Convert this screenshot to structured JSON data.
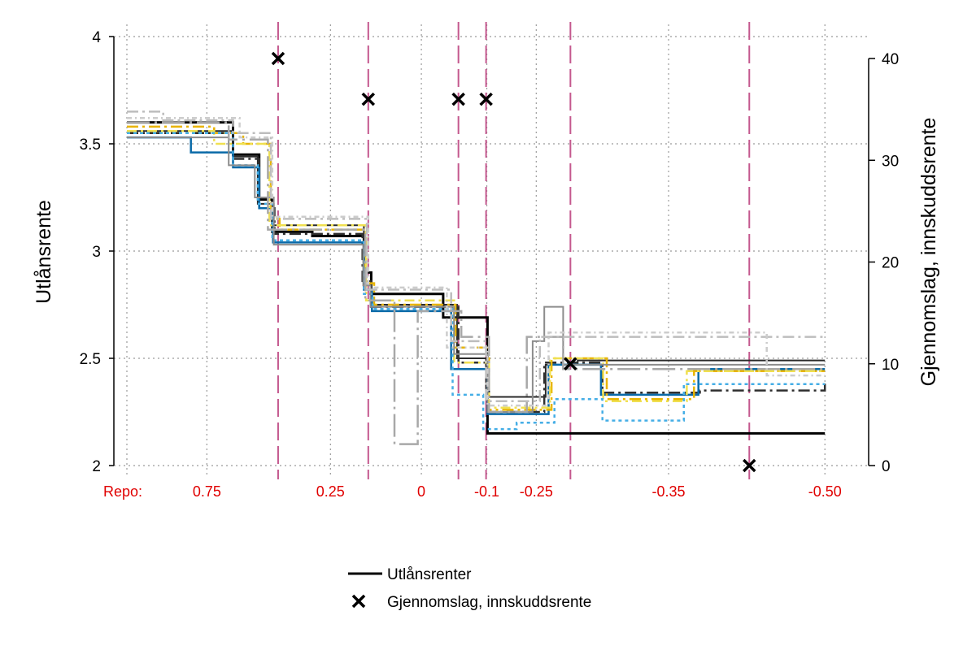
{
  "chart_data": {
    "type": "line",
    "ylabel_left": "Utlånsrente",
    "ylabel_right": "Gjennomslag, innskuddsrente",
    "ylim_left": [
      2,
      4
    ],
    "ylim_right": [
      0,
      40
    ],
    "yticks_left": [
      "2",
      "2.5",
      "3",
      "3.5",
      "4"
    ],
    "yticks_right": [
      "0",
      "10",
      "20",
      "30",
      "40"
    ],
    "grid": true,
    "x_domain": [
      0,
      100
    ],
    "repo_label": "Repo:",
    "repo_ticks": [
      {
        "label": "0.75",
        "x": 11
      },
      {
        "label": "0.25",
        "x": 28
      },
      {
        "label": "0",
        "x": 40.5
      },
      {
        "label": "-0.1",
        "x": 49.5
      },
      {
        "label": "-0.25",
        "x": 56.3
      },
      {
        "label": "-0.35",
        "x": 74.5
      },
      {
        "label": "-0.50",
        "x": 96
      }
    ],
    "rate_change_lines_x": [
      20.8,
      33.2,
      45.6,
      49.4,
      61.0,
      85.6
    ],
    "gjennomslag_points": [
      {
        "x": 20.8,
        "y": 40
      },
      {
        "x": 33.2,
        "y": 36
      },
      {
        "x": 45.6,
        "y": 36
      },
      {
        "x": 49.4,
        "y": 36
      },
      {
        "x": 61.0,
        "y": 10
      },
      {
        "x": 85.6,
        "y": 0
      }
    ],
    "series": [
      {
        "name": "Utlånsrenter",
        "color": "#000000",
        "dash": "",
        "width": 3,
        "points": [
          [
            0,
            3.6
          ],
          [
            14.6,
            3.6
          ],
          [
            14.6,
            3.45
          ],
          [
            18.2,
            3.45
          ],
          [
            18.2,
            3.24
          ],
          [
            20.0,
            3.24
          ],
          [
            20.0,
            3.09
          ],
          [
            25.5,
            3.09
          ],
          [
            25.5,
            3.07
          ],
          [
            32.6,
            3.07
          ],
          [
            32.6,
            2.9
          ],
          [
            33.6,
            2.9
          ],
          [
            33.6,
            2.8
          ],
          [
            43.5,
            2.8
          ],
          [
            43.5,
            2.69
          ],
          [
            49.6,
            2.69
          ],
          [
            49.6,
            2.15
          ],
          [
            96,
            2.15
          ]
        ]
      },
      {
        "color": "#2a2a2a",
        "dash": "",
        "width": 2,
        "points": [
          [
            0,
            3.56
          ],
          [
            14.6,
            3.56
          ],
          [
            14.6,
            3.44
          ],
          [
            18.0,
            3.44
          ],
          [
            18.0,
            3.22
          ],
          [
            20.2,
            3.22
          ],
          [
            20.2,
            3.12
          ],
          [
            32.6,
            3.12
          ],
          [
            32.6,
            2.86
          ],
          [
            33.6,
            2.86
          ],
          [
            33.6,
            2.75
          ],
          [
            45.4,
            2.75
          ],
          [
            45.4,
            2.5
          ],
          [
            49.4,
            2.5
          ],
          [
            49.4,
            2.32
          ],
          [
            57.6,
            2.32
          ],
          [
            57.6,
            2.47
          ],
          [
            62.0,
            2.47
          ],
          [
            62.0,
            2.49
          ],
          [
            96,
            2.49
          ]
        ]
      },
      {
        "color": "#2f2f2f",
        "dash": "14 5 3 5",
        "width": 2.5,
        "points": [
          [
            0,
            3.55
          ],
          [
            14.6,
            3.55
          ],
          [
            14.6,
            3.43
          ],
          [
            18.2,
            3.43
          ],
          [
            18.2,
            3.2
          ],
          [
            20.3,
            3.2
          ],
          [
            20.3,
            3.08
          ],
          [
            32.4,
            3.08
          ],
          [
            32.4,
            2.84
          ],
          [
            33.6,
            2.84
          ],
          [
            33.6,
            2.74
          ],
          [
            45.6,
            2.74
          ],
          [
            45.6,
            2.48
          ],
          [
            49.8,
            2.48
          ],
          [
            49.8,
            2.25
          ],
          [
            57.4,
            2.25
          ],
          [
            57.4,
            2.48
          ],
          [
            65.4,
            2.48
          ],
          [
            65.4,
            2.34
          ],
          [
            78.8,
            2.34
          ],
          [
            78.8,
            2.35
          ],
          [
            96,
            2.35
          ],
          [
            96,
            2.4
          ]
        ]
      },
      {
        "color": "#0a6aa8",
        "dash": "",
        "width": 2.5,
        "points": [
          [
            0,
            3.53
          ],
          [
            8.8,
            3.53
          ],
          [
            8.8,
            3.46
          ],
          [
            14.6,
            3.46
          ],
          [
            14.6,
            3.39
          ],
          [
            18.2,
            3.39
          ],
          [
            18.2,
            3.2
          ],
          [
            20.1,
            3.2
          ],
          [
            20.1,
            3.04
          ],
          [
            32.6,
            3.04
          ],
          [
            32.6,
            2.82
          ],
          [
            33.7,
            2.82
          ],
          [
            33.7,
            2.72
          ],
          [
            44.6,
            2.72
          ],
          [
            44.6,
            2.45
          ],
          [
            49.6,
            2.45
          ],
          [
            49.6,
            2.24
          ],
          [
            58.0,
            2.24
          ],
          [
            58.0,
            2.47
          ],
          [
            65.2,
            2.47
          ],
          [
            65.2,
            2.33
          ],
          [
            78.6,
            2.33
          ],
          [
            78.6,
            2.45
          ],
          [
            96,
            2.45
          ]
        ]
      },
      {
        "color": "#e8b400",
        "dash": "14 5 3 5",
        "width": 2.5,
        "points": [
          [
            0,
            3.58
          ],
          [
            12.0,
            3.58
          ],
          [
            12.0,
            3.55
          ],
          [
            16.0,
            3.55
          ],
          [
            16.0,
            3.5
          ],
          [
            19.8,
            3.5
          ],
          [
            19.8,
            3.15
          ],
          [
            21.0,
            3.15
          ],
          [
            21.0,
            3.1
          ],
          [
            32.8,
            3.1
          ],
          [
            32.8,
            2.85
          ],
          [
            34.0,
            2.85
          ],
          [
            34.0,
            2.75
          ],
          [
            45.2,
            2.75
          ],
          [
            45.2,
            2.55
          ],
          [
            49.8,
            2.55
          ],
          [
            49.8,
            2.26
          ],
          [
            58.4,
            2.26
          ],
          [
            58.4,
            2.5
          ],
          [
            66.0,
            2.5
          ],
          [
            66.0,
            2.31
          ],
          [
            78.0,
            2.31
          ],
          [
            78.0,
            2.44
          ],
          [
            96,
            2.44
          ]
        ]
      },
      {
        "color": "#f0e050",
        "dash": "12 5 3 5",
        "width": 2.5,
        "points": [
          [
            0,
            3.56
          ],
          [
            12.0,
            3.56
          ],
          [
            12.0,
            3.5
          ],
          [
            19.6,
            3.5
          ],
          [
            19.6,
            3.12
          ],
          [
            32.9,
            3.12
          ],
          [
            32.9,
            2.77
          ],
          [
            45.0,
            2.77
          ],
          [
            45.0,
            2.48
          ],
          [
            49.8,
            2.48
          ],
          [
            49.8,
            2.27
          ],
          [
            58.2,
            2.27
          ],
          [
            58.2,
            2.5
          ],
          [
            65.5,
            2.5
          ],
          [
            65.5,
            2.3
          ],
          [
            77.0,
            2.3
          ],
          [
            77.0,
            2.44
          ],
          [
            96,
            2.44
          ]
        ]
      },
      {
        "color": "#45aee6",
        "dash": "4 4",
        "width": 2.5,
        "points": [
          [
            0,
            3.55
          ],
          [
            14.6,
            3.55
          ],
          [
            14.6,
            3.4
          ],
          [
            18.0,
            3.4
          ],
          [
            18.0,
            3.22
          ],
          [
            20.0,
            3.22
          ],
          [
            20.0,
            3.05
          ],
          [
            32.6,
            3.05
          ],
          [
            32.6,
            2.8
          ],
          [
            33.8,
            2.8
          ],
          [
            33.8,
            2.73
          ],
          [
            44.8,
            2.73
          ],
          [
            44.8,
            2.33
          ],
          [
            49.0,
            2.33
          ],
          [
            49.0,
            2.17
          ],
          [
            53.6,
            2.17
          ],
          [
            53.6,
            2.2
          ],
          [
            58.8,
            2.2
          ],
          [
            58.8,
            2.31
          ],
          [
            65.4,
            2.31
          ],
          [
            65.4,
            2.21
          ],
          [
            76.6,
            2.21
          ],
          [
            76.6,
            2.38
          ],
          [
            96,
            2.38
          ]
        ]
      },
      {
        "color": "#8c8c8c",
        "dash": "",
        "width": 2,
        "points": [
          [
            0,
            3.53
          ],
          [
            14.0,
            3.53
          ],
          [
            14.0,
            3.4
          ],
          [
            17.6,
            3.4
          ],
          [
            17.6,
            3.25
          ],
          [
            20.2,
            3.25
          ],
          [
            20.2,
            3.03
          ],
          [
            32.5,
            3.03
          ],
          [
            32.5,
            2.84
          ],
          [
            33.5,
            2.84
          ],
          [
            33.5,
            2.74
          ],
          [
            45.0,
            2.74
          ],
          [
            45.0,
            2.52
          ],
          [
            49.6,
            2.52
          ],
          [
            49.6,
            2.25
          ],
          [
            55.8,
            2.25
          ],
          [
            55.8,
            2.58
          ],
          [
            57.4,
            2.58
          ],
          [
            57.4,
            2.74
          ],
          [
            60.0,
            2.74
          ],
          [
            60.0,
            2.47
          ],
          [
            96,
            2.47
          ]
        ]
      },
      {
        "color": "#a8a8a8",
        "dash": "28 6 3 6",
        "width": 2.5,
        "points": [
          [
            0,
            3.6
          ],
          [
            14.0,
            3.6
          ],
          [
            14.0,
            3.52
          ],
          [
            19.4,
            3.52
          ],
          [
            19.4,
            3.1
          ],
          [
            32.8,
            3.1
          ],
          [
            32.8,
            2.77
          ],
          [
            36.8,
            2.77
          ],
          [
            36.8,
            2.1
          ],
          [
            40.0,
            2.1
          ],
          [
            40.0,
            2.72
          ],
          [
            46.0,
            2.72
          ],
          [
            46.0,
            2.6
          ],
          [
            49.8,
            2.6
          ],
          [
            49.8,
            2.25
          ],
          [
            55.0,
            2.25
          ],
          [
            55.0,
            2.6
          ],
          [
            60.0,
            2.6
          ],
          [
            60.0,
            2.45
          ],
          [
            83.0,
            2.45
          ],
          [
            83.0,
            2.45
          ],
          [
            96,
            2.45
          ]
        ]
      },
      {
        "color": "#bdbdbd",
        "dash": "14 5 3 5",
        "width": 2.5,
        "points": [
          [
            0,
            3.65
          ],
          [
            5.0,
            3.65
          ],
          [
            5.0,
            3.61
          ],
          [
            14.6,
            3.61
          ],
          [
            14.6,
            3.55
          ],
          [
            19.8,
            3.55
          ],
          [
            19.8,
            3.15
          ],
          [
            33.0,
            3.15
          ],
          [
            33.0,
            2.82
          ],
          [
            44.6,
            2.82
          ],
          [
            44.6,
            2.58
          ],
          [
            49.4,
            2.58
          ],
          [
            49.4,
            2.3
          ],
          [
            56.8,
            2.3
          ],
          [
            56.8,
            2.6
          ],
          [
            74.0,
            2.6
          ],
          [
            74.0,
            2.6
          ],
          [
            96,
            2.6
          ]
        ]
      },
      {
        "color": "#cccccc",
        "dash": "6 4 2 4",
        "width": 2.5,
        "points": [
          [
            0,
            3.62
          ],
          [
            15.5,
            3.62
          ],
          [
            15.5,
            3.53
          ],
          [
            20.0,
            3.53
          ],
          [
            20.0,
            3.16
          ],
          [
            33.2,
            3.16
          ],
          [
            33.2,
            2.83
          ],
          [
            44.0,
            2.83
          ],
          [
            44.0,
            2.55
          ],
          [
            49.6,
            2.55
          ],
          [
            49.6,
            2.28
          ],
          [
            58.0,
            2.28
          ],
          [
            58.0,
            2.62
          ],
          [
            88.0,
            2.62
          ],
          [
            88.0,
            2.42
          ],
          [
            96,
            2.42
          ]
        ]
      }
    ]
  },
  "legend": {
    "items": [
      {
        "label": "Utlånsrenter"
      },
      {
        "label": "Gjennomslag, innskuddsrente"
      }
    ]
  }
}
